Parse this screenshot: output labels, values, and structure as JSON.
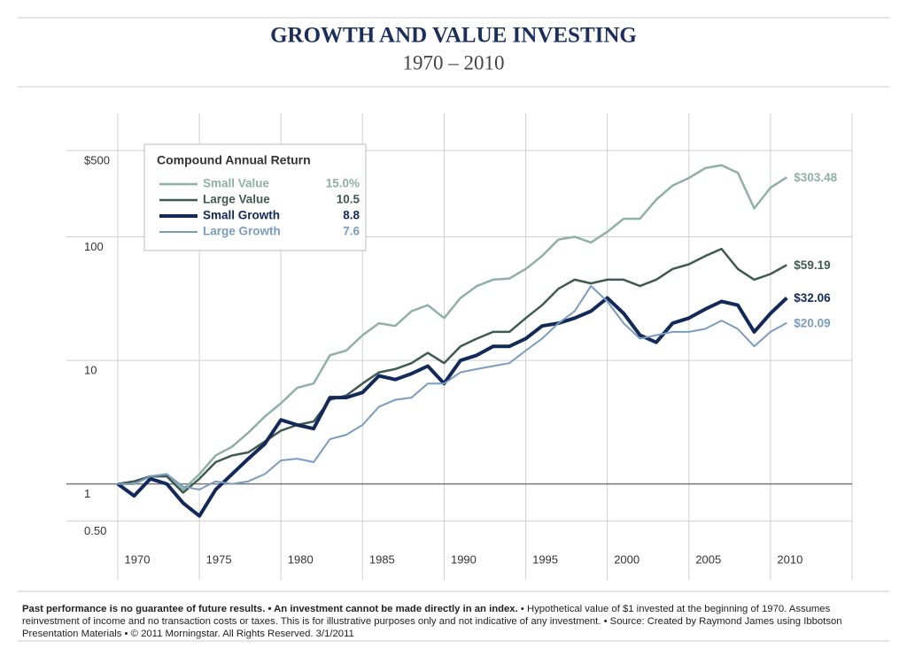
{
  "chart_data": {
    "type": "line",
    "title": "GROWTH AND VALUE INVESTING",
    "subtitle": "1970 – 2010",
    "log_scale": true,
    "grid": true,
    "legend_title": "Compound Annual Return",
    "legend_position": "upper left",
    "x": [
      1970,
      1971,
      1972,
      1973,
      1974,
      1975,
      1976,
      1977,
      1978,
      1979,
      1980,
      1981,
      1982,
      1983,
      1984,
      1985,
      1986,
      1987,
      1988,
      1989,
      1990,
      1991,
      1992,
      1993,
      1994,
      1995,
      1996,
      1997,
      1998,
      1999,
      2000,
      2001,
      2002,
      2003,
      2004,
      2005,
      2006,
      2007,
      2008,
      2009,
      2010,
      2011
    ],
    "xlim": [
      1970,
      2015
    ],
    "xticks": [
      {
        "value": 1970,
        "label": "1970"
      },
      {
        "value": 1975,
        "label": "1975"
      },
      {
        "value": 1980,
        "label": "1980"
      },
      {
        "value": 1985,
        "label": "1985"
      },
      {
        "value": 1990,
        "label": "1990"
      },
      {
        "value": 1995,
        "label": "1995"
      },
      {
        "value": 2000,
        "label": "2000"
      },
      {
        "value": 2005,
        "label": "2005"
      },
      {
        "value": 2010,
        "label": "2010"
      }
    ],
    "ylim": [
      0.45,
      1000
    ],
    "yticks": [
      {
        "value": 0.5,
        "label": "0.50"
      },
      1,
      10,
      100,
      {
        "value": 500,
        "label": "$500"
      }
    ],
    "series": [
      {
        "name": "Small Value",
        "annual_return": "15.0%",
        "color": "#8fb0a6",
        "width": 2.5,
        "values": [
          1,
          1.0,
          1.15,
          1.2,
          0.9,
          1.2,
          1.7,
          2.0,
          2.6,
          3.5,
          4.5,
          6,
          6.5,
          11,
          12,
          16,
          20,
          19,
          25,
          28,
          22,
          32,
          40,
          45,
          46,
          55,
          70,
          95,
          100,
          90,
          110,
          140,
          140,
          200,
          260,
          300,
          360,
          380,
          330,
          170,
          250,
          303.48
        ],
        "value_labels": [
          null,
          null,
          null,
          null,
          null,
          null,
          null,
          null,
          null,
          null,
          null,
          null,
          null,
          null,
          null,
          null,
          null,
          null,
          null,
          null,
          null,
          null,
          null,
          null,
          null,
          null,
          null,
          null,
          null,
          null,
          null,
          null,
          null,
          null,
          null,
          null,
          null,
          null,
          null,
          null,
          null,
          "$303.48"
        ]
      },
      {
        "name": "Large Value",
        "annual_return": "10.5",
        "color": "#3f5a50",
        "width": 2.5,
        "values": [
          1,
          1.05,
          1.15,
          1.15,
          0.85,
          1.1,
          1.5,
          1.7,
          1.8,
          2.2,
          2.7,
          3.0,
          3.2,
          4.8,
          5.2,
          6.5,
          8,
          8.5,
          9.5,
          11.5,
          9.5,
          13,
          15,
          17,
          17,
          22,
          28,
          38,
          45,
          42,
          45,
          45,
          40,
          45,
          55,
          60,
          70,
          80,
          55,
          45,
          50,
          59.19
        ],
        "value_labels": [
          null,
          null,
          null,
          null,
          null,
          null,
          null,
          null,
          null,
          null,
          null,
          null,
          null,
          null,
          null,
          null,
          null,
          null,
          null,
          null,
          null,
          null,
          null,
          null,
          null,
          null,
          null,
          null,
          null,
          null,
          null,
          null,
          null,
          null,
          null,
          null,
          null,
          null,
          null,
          null,
          null,
          "$59.19"
        ]
      },
      {
        "name": "Small Growth",
        "annual_return": "8.8",
        "color": "#13295a",
        "width": 4,
        "values": [
          1,
          0.8,
          1.1,
          1.0,
          0.7,
          0.55,
          0.9,
          1.2,
          1.6,
          2.1,
          3.3,
          3.0,
          2.8,
          5.0,
          5.0,
          5.5,
          7.5,
          7,
          7.8,
          9,
          6.5,
          10,
          11,
          13,
          13,
          15,
          19,
          20,
          22,
          25,
          32,
          24,
          16,
          14,
          20,
          22,
          26,
          30,
          28,
          17,
          24,
          32.06
        ],
        "value_labels": [
          null,
          null,
          null,
          null,
          null,
          null,
          null,
          null,
          null,
          null,
          null,
          null,
          null,
          null,
          null,
          null,
          null,
          null,
          null,
          null,
          null,
          null,
          null,
          null,
          null,
          null,
          null,
          null,
          null,
          null,
          null,
          null,
          null,
          null,
          null,
          null,
          null,
          null,
          null,
          null,
          null,
          "$32.06"
        ]
      },
      {
        "name": "Large Growth",
        "annual_return": "7.6",
        "color": "#7a9cbf",
        "width": 2,
        "values": [
          1,
          1.0,
          1.15,
          1.2,
          0.95,
          0.9,
          1.05,
          1.0,
          1.05,
          1.2,
          1.55,
          1.6,
          1.5,
          2.3,
          2.5,
          3.0,
          4.2,
          4.8,
          5.0,
          6.5,
          6.5,
          8,
          8.5,
          9,
          9.5,
          12,
          15,
          20,
          25,
          40,
          30,
          20,
          15,
          16,
          17,
          17,
          18,
          21,
          18,
          13,
          17,
          20.09
        ],
        "value_labels": [
          null,
          null,
          null,
          null,
          null,
          null,
          null,
          null,
          null,
          null,
          null,
          null,
          null,
          null,
          null,
          null,
          null,
          null,
          null,
          null,
          null,
          null,
          null,
          null,
          null,
          null,
          null,
          null,
          null,
          null,
          null,
          null,
          null,
          null,
          null,
          null,
          null,
          null,
          null,
          null,
          null,
          "$20.09"
        ]
      }
    ],
    "footnote_bold": "Past performance is no guarantee of future results. • An investment cannot be made directly in an index.",
    "footnote": "• Hypothetical value of $1 invested at the beginning of 1970. Assumes reinvestment of income and no transaction costs or taxes. This is for illustrative purposes only and not indicative of any investment. • Source: Created by Raymond James using Ibbotson Presentation Materials • © 2011 Morningstar. All Rights Reserved. 3/1/2011"
  }
}
